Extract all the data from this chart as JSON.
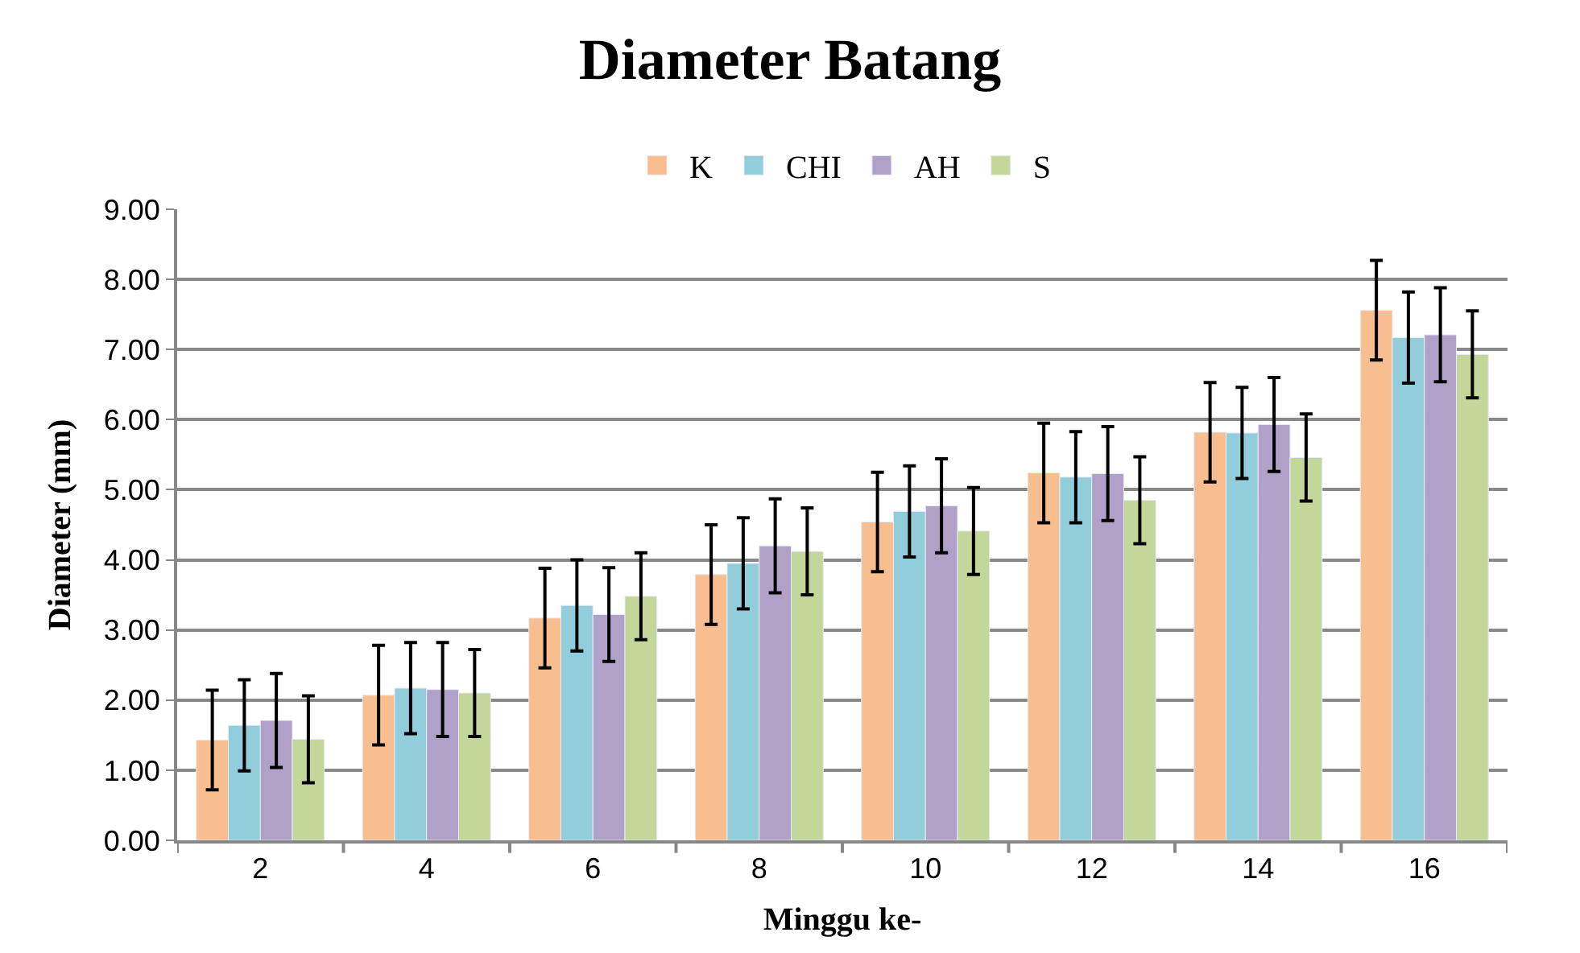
{
  "chart_data": {
    "type": "bar",
    "title": "Diameter Batang",
    "xlabel": "Minggu ke-",
    "ylabel": "Diameter (mm)",
    "categories": [
      "2",
      "4",
      "6",
      "8",
      "10",
      "12",
      "14",
      "16"
    ],
    "series": [
      {
        "name": "K",
        "color": "#f9be8f",
        "values": [
          1.43,
          2.07,
          3.17,
          3.79,
          4.54,
          5.24,
          5.82,
          7.56
        ],
        "errors": [
          0.71,
          0.71,
          0.71,
          0.71,
          0.71,
          0.71,
          0.71,
          0.71
        ]
      },
      {
        "name": "CHI",
        "color": "#92cddc",
        "values": [
          1.64,
          2.17,
          3.35,
          3.95,
          4.69,
          5.18,
          5.81,
          7.17
        ],
        "errors": [
          0.65,
          0.65,
          0.65,
          0.65,
          0.65,
          0.65,
          0.65,
          0.65
        ]
      },
      {
        "name": "AH",
        "color": "#b1a0c7",
        "values": [
          1.71,
          2.15,
          3.22,
          4.2,
          4.77,
          5.23,
          5.93,
          7.21
        ],
        "errors": [
          0.67,
          0.67,
          0.67,
          0.67,
          0.67,
          0.67,
          0.67,
          0.67
        ]
      },
      {
        "name": "S",
        "color": "#c4d79b",
        "values": [
          1.44,
          2.1,
          3.48,
          4.12,
          4.41,
          4.85,
          5.46,
          6.93
        ],
        "errors": [
          0.62,
          0.62,
          0.62,
          0.62,
          0.62,
          0.62,
          0.62,
          0.62
        ]
      }
    ],
    "ylim": [
      0,
      9
    ],
    "yticks": [
      {
        "value": 0,
        "label": "0.00"
      },
      {
        "value": 1,
        "label": "1.00"
      },
      {
        "value": 2,
        "label": "2.00"
      },
      {
        "value": 3,
        "label": "3.00"
      },
      {
        "value": 4,
        "label": "4.00"
      },
      {
        "value": 5,
        "label": "5.00"
      },
      {
        "value": 6,
        "label": "6.00"
      },
      {
        "value": 7,
        "label": "7.00"
      },
      {
        "value": 8,
        "label": "8.00"
      },
      {
        "value": 9,
        "label": "9.00"
      }
    ],
    "grid": "y",
    "legend": "top"
  }
}
